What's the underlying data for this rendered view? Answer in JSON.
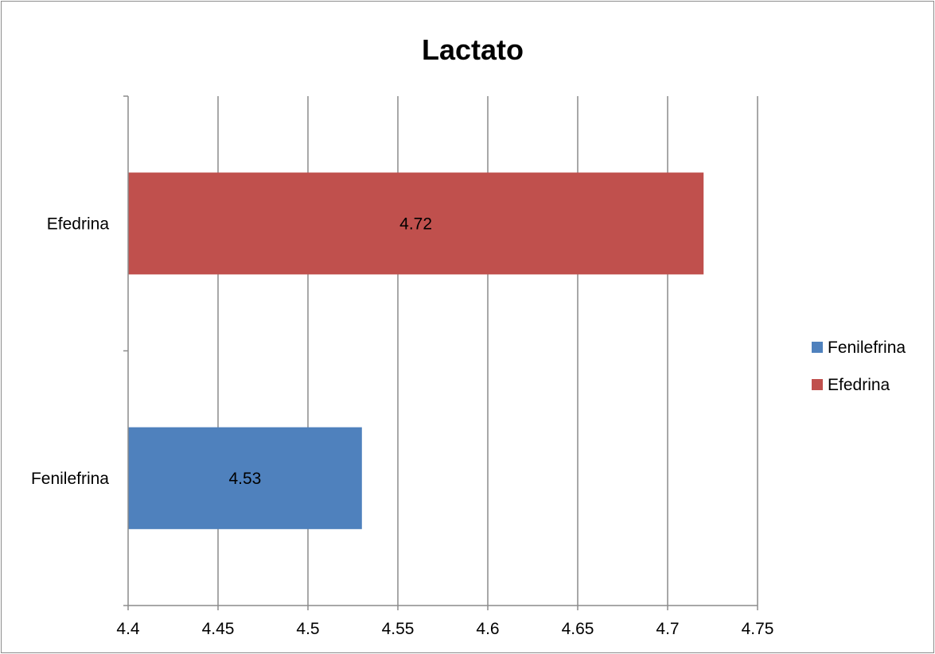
{
  "chart_data": {
    "type": "bar",
    "orientation": "horizontal",
    "title": "Lactato",
    "xlabel": "",
    "ylabel": "",
    "categories": [
      "Efedrina",
      "Fenilefrina"
    ],
    "series": [
      {
        "name": "Fenilefrina",
        "color": "#4f81bd",
        "category": "Fenilefrina",
        "value": 4.53,
        "label": "4.53"
      },
      {
        "name": "Efedrina",
        "color": "#c0504d",
        "category": "Efedrina",
        "value": 4.72,
        "label": "4.72"
      }
    ],
    "xlim": [
      4.4,
      4.75
    ],
    "xticks": [
      4.4,
      4.45,
      4.5,
      4.55,
      4.6,
      4.65,
      4.7,
      4.75
    ],
    "xtick_labels": [
      "4.4",
      "4.45",
      "4.5",
      "4.55",
      "4.6",
      "4.65",
      "4.7",
      "4.75"
    ],
    "grid": true,
    "gridline_color": "#8c8c8c",
    "legend": {
      "position": "right",
      "entries": [
        "Fenilefrina",
        "Efedrina"
      ]
    }
  }
}
